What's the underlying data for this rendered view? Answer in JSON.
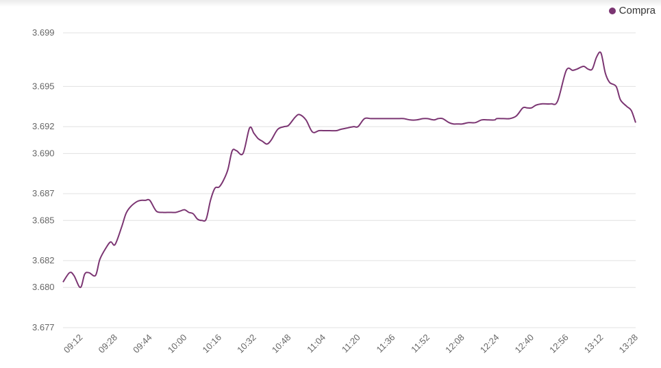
{
  "colors": {
    "series": "#7b3572",
    "grid": "#e0e0e0",
    "tick": "#666666"
  },
  "chart_data": {
    "type": "line",
    "title": "",
    "xlabel": "",
    "ylabel": "",
    "legend_position": "top-right",
    "grid": true,
    "yticks": [
      "3.699",
      "3.695",
      "3.692",
      "3.690",
      "3.687",
      "3.685",
      "3.682",
      "3.680",
      "3.677"
    ],
    "xticks": [
      "09:12",
      "09:28",
      "09:44",
      "10:00",
      "10:16",
      "10:32",
      "10:48",
      "11:04",
      "11:20",
      "11:36",
      "11:52",
      "12:08",
      "12:24",
      "12:40",
      "12:56",
      "13:12",
      "13:28"
    ],
    "ylim": [
      3.6775,
      3.6995
    ],
    "xlim": [
      "09:04",
      "13:28"
    ],
    "series": [
      {
        "name": "Compra",
        "x": [
          "09:04",
          "09:07",
          "09:09",
          "09:12",
          "09:14",
          "09:16",
          "09:19",
          "09:21",
          "09:24",
          "09:26",
          "09:28",
          "09:31",
          "09:33",
          "09:35",
          "09:38",
          "09:40",
          "09:42",
          "09:44",
          "09:47",
          "09:50",
          "09:52",
          "09:54",
          "09:56",
          "09:58",
          "10:00",
          "10:02",
          "10:04",
          "10:06",
          "10:08",
          "10:10",
          "10:12",
          "10:14",
          "10:16",
          "10:18",
          "10:20",
          "10:22",
          "10:24",
          "10:27",
          "10:30",
          "10:32",
          "10:34",
          "10:36",
          "10:38",
          "10:40",
          "10:43",
          "10:46",
          "10:48",
          "10:51",
          "10:53",
          "10:56",
          "10:59",
          "11:02",
          "11:04",
          "11:07",
          "11:10",
          "11:12",
          "11:15",
          "11:18",
          "11:20",
          "11:23",
          "11:26",
          "11:30",
          "11:34",
          "11:38",
          "11:41",
          "11:44",
          "11:47",
          "11:50",
          "11:52",
          "11:55",
          "11:57",
          "11:59",
          "12:02",
          "12:04",
          "12:06",
          "12:08",
          "12:11",
          "12:14",
          "12:17",
          "12:20",
          "12:23",
          "12:24",
          "12:27",
          "12:30",
          "12:33",
          "12:36",
          "12:38",
          "12:40",
          "12:42",
          "12:45",
          "12:49",
          "12:52",
          "12:56",
          "12:59",
          "13:01",
          "13:04",
          "13:06",
          "13:08",
          "13:10",
          "13:12",
          "13:14",
          "13:16",
          "13:19",
          "13:21",
          "13:24",
          "13:26",
          "13:28"
        ],
        "values": [
          3.6804,
          3.6811,
          3.6809,
          3.68,
          3.681,
          3.6811,
          3.6809,
          3.6821,
          3.683,
          3.6834,
          3.6832,
          3.6845,
          3.6855,
          3.686,
          3.6864,
          3.6865,
          3.6865,
          3.6865,
          3.6857,
          3.6856,
          3.6856,
          3.6856,
          3.6856,
          3.6857,
          3.6858,
          3.6856,
          3.6855,
          3.6851,
          3.685,
          3.6851,
          3.6865,
          3.6874,
          3.6875,
          3.688,
          3.6888,
          3.6902,
          3.6902,
          3.69,
          3.6919,
          3.6915,
          3.6911,
          3.6909,
          3.6907,
          3.691,
          3.6918,
          3.692,
          3.6921,
          3.6927,
          3.6929,
          3.6925,
          3.6916,
          3.6917,
          3.6917,
          3.6917,
          3.6917,
          3.6918,
          3.6919,
          3.692,
          3.692,
          3.6926,
          3.6926,
          3.6926,
          3.6926,
          3.6926,
          3.6926,
          3.6925,
          3.6925,
          3.6926,
          3.6926,
          3.6925,
          3.6926,
          3.6926,
          3.6923,
          3.6922,
          3.6922,
          3.6922,
          3.6923,
          3.6923,
          3.6925,
          3.6925,
          3.6925,
          3.6926,
          3.6926,
          3.6926,
          3.6928,
          3.6934,
          3.6934,
          3.6934,
          3.6936,
          3.6937,
          3.6937,
          3.6939,
          3.6962,
          3.6962,
          3.6963,
          3.6965,
          3.6963,
          3.6963,
          3.6972,
          3.6975,
          3.696,
          3.6953,
          3.695,
          3.694,
          3.6935,
          3.6932,
          3.6923
        ]
      }
    ]
  }
}
